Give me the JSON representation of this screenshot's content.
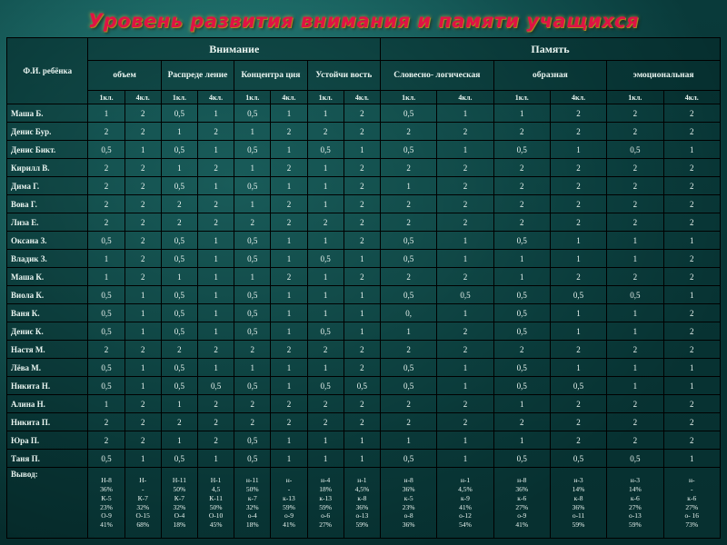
{
  "title": "Уровень развития внимания  и памяти учащихся",
  "colors": {
    "background_teal": "#1f716d",
    "title_red": "#e01345",
    "title_glow_gold": "#d8b23a",
    "cell_background": "#0a4040",
    "table_text": "#eaf5f1",
    "border": "#000000"
  },
  "table": {
    "corner": "Ф.И. ребёнка",
    "grade_labels": [
      "1кл.",
      "4кл."
    ],
    "groups": [
      {
        "label": "Внимание",
        "subs": [
          "объем",
          "Распреде ление",
          "Концентра ция",
          "Устойчи вость"
        ]
      },
      {
        "label": "Память",
        "subs": [
          "Словесно- логическая",
          "образная",
          "эмоциональная"
        ]
      }
    ],
    "rows": [
      {
        "name": "Маша Б.",
        "values": [
          "1",
          "2",
          "0,5",
          "1",
          "0,5",
          "1",
          "1",
          "2",
          "0,5",
          "1",
          "1",
          "2",
          "2",
          "2"
        ]
      },
      {
        "name": "Денис Бур.",
        "values": [
          "2",
          "2",
          "1",
          "2",
          "1",
          "2",
          "2",
          "2",
          "2",
          "2",
          "2",
          "2",
          "2",
          "2"
        ]
      },
      {
        "name": "Денис Бикт.",
        "values": [
          "0,5",
          "1",
          "0,5",
          "1",
          "0,5",
          "1",
          "0,5",
          "1",
          "0,5",
          "1",
          "0,5",
          "1",
          "0,5",
          "1"
        ]
      },
      {
        "name": "Кирилл В.",
        "values": [
          "2",
          "2",
          "1",
          "2",
          "1",
          "2",
          "1",
          "2",
          "2",
          "2",
          "2",
          "2",
          "2",
          "2"
        ]
      },
      {
        "name": "Дима Г.",
        "values": [
          "2",
          "2",
          "0,5",
          "1",
          "0,5",
          "1",
          "1",
          "2",
          "1",
          "2",
          "2",
          "2",
          "2",
          "2"
        ]
      },
      {
        "name": "Вова Г.",
        "values": [
          "2",
          "2",
          "2",
          "2",
          "1",
          "2",
          "1",
          "2",
          "2",
          "2",
          "2",
          "2",
          "2",
          "2"
        ]
      },
      {
        "name": "Лиза Е.",
        "values": [
          "2",
          "2",
          "2",
          "2",
          "2",
          "2",
          "2",
          "2",
          "2",
          "2",
          "2",
          "2",
          "2",
          "2"
        ]
      },
      {
        "name": "Оксана З.",
        "values": [
          "0,5",
          "2",
          "0,5",
          "1",
          "0,5",
          "1",
          "1",
          "2",
          "0,5",
          "1",
          "0,5",
          "1",
          "1",
          "1"
        ]
      },
      {
        "name": "Владик З.",
        "values": [
          "1",
          "2",
          "0,5",
          "1",
          "0,5",
          "1",
          "0,5",
          "1",
          "0,5",
          "1",
          "1",
          "1",
          "1",
          "2"
        ]
      },
      {
        "name": "Маша К.",
        "values": [
          "1",
          "2",
          "1",
          "1",
          "1",
          "2",
          "1",
          "2",
          "2",
          "2",
          "1",
          "2",
          "2",
          "2"
        ]
      },
      {
        "name": "Виола К.",
        "values": [
          "0,5",
          "1",
          "0,5",
          "1",
          "0,5",
          "1",
          "1",
          "1",
          "0,5",
          "0,5",
          "0,5",
          "0,5",
          "0,5",
          "1"
        ]
      },
      {
        "name": "Ваня К.",
        "values": [
          "0,5",
          "1",
          "0,5",
          "1",
          "0,5",
          "1",
          "1",
          "1",
          "0,",
          "1",
          "0,5",
          "1",
          "1",
          "2"
        ]
      },
      {
        "name": "Денис К.",
        "values": [
          "0,5",
          "1",
          "0,5",
          "1",
          "0,5",
          "1",
          "0,5",
          "1",
          "1",
          "2",
          "0,5",
          "1",
          "1",
          "2"
        ]
      },
      {
        "name": "Настя М.",
        "values": [
          "2",
          "2",
          "2",
          "2",
          "2",
          "2",
          "2",
          "2",
          "2",
          "2",
          "2",
          "2",
          "2",
          "2"
        ]
      },
      {
        "name": "Лёва М.",
        "values": [
          "0,5",
          "1",
          "0,5",
          "1",
          "1",
          "1",
          "1",
          "2",
          "0,5",
          "1",
          "0,5",
          "1",
          "1",
          "1"
        ]
      },
      {
        "name": "Никита Н.",
        "values": [
          "0,5",
          "1",
          "0,5",
          "0,5",
          "0,5",
          "1",
          "0,5",
          "0,5",
          "0,5",
          "1",
          "0,5",
          "0,5",
          "1",
          "1"
        ]
      },
      {
        "name": "Алина Н.",
        "values": [
          "1",
          "2",
          "1",
          "2",
          "2",
          "2",
          "2",
          "2",
          "2",
          "2",
          "1",
          "2",
          "2",
          "2"
        ]
      },
      {
        "name": "Никита П.",
        "values": [
          "2",
          "2",
          "2",
          "2",
          "2",
          "2",
          "2",
          "2",
          "2",
          "2",
          "2",
          "2",
          "2",
          "2"
        ]
      },
      {
        "name": "Юра П.",
        "values": [
          "2",
          "2",
          "1",
          "2",
          "0,5",
          "1",
          "1",
          "1",
          "1",
          "1",
          "1",
          "2",
          "2",
          "2"
        ]
      },
      {
        "name": "Таня П.",
        "values": [
          "0,5",
          "1",
          "0,5",
          "1",
          "0,5",
          "1",
          "1",
          "1",
          "0,5",
          "1",
          "0,5",
          "0,5",
          "0,5",
          "1"
        ]
      }
    ],
    "summary": {
      "name": "Вывод:",
      "cells": [
        "Н-8\n36%\nК-5\n23%\nО-9\n41%",
        "Н-\n-\nК-7\n32%\nО-15\n68%",
        "Н-11\n50%\nК-7\n32%\nО-4\n18%",
        "Н-1\n4,5\nК-11\n50%\nО-10\n45%",
        "н-11\n50%\nк-7\n32%\nо-4\n18%",
        "н-\n-\nк-13\n59%\nо-9\n41%",
        "н-4\n18%\nк-13\n59%\nо-6\n27%",
        "н-1\n4,5%\nк-8\n36%\nо-13\n59%",
        "н-8\n36%\nк-5\n23%\nо-8\n36%",
        "н-1\n4,5%\nк-9\n41%\nо-12\n54%",
        "н-8\n36%\nк-6\n27%\nо-9\n41%",
        "н-3\n14%\nк-8\n36%\nо-11\n59%",
        "н-3\n14%\nк-6\n27%\nо-13\n59%",
        "н-\n-\nк-6\n27%\nо- 16\n73%"
      ]
    }
  }
}
